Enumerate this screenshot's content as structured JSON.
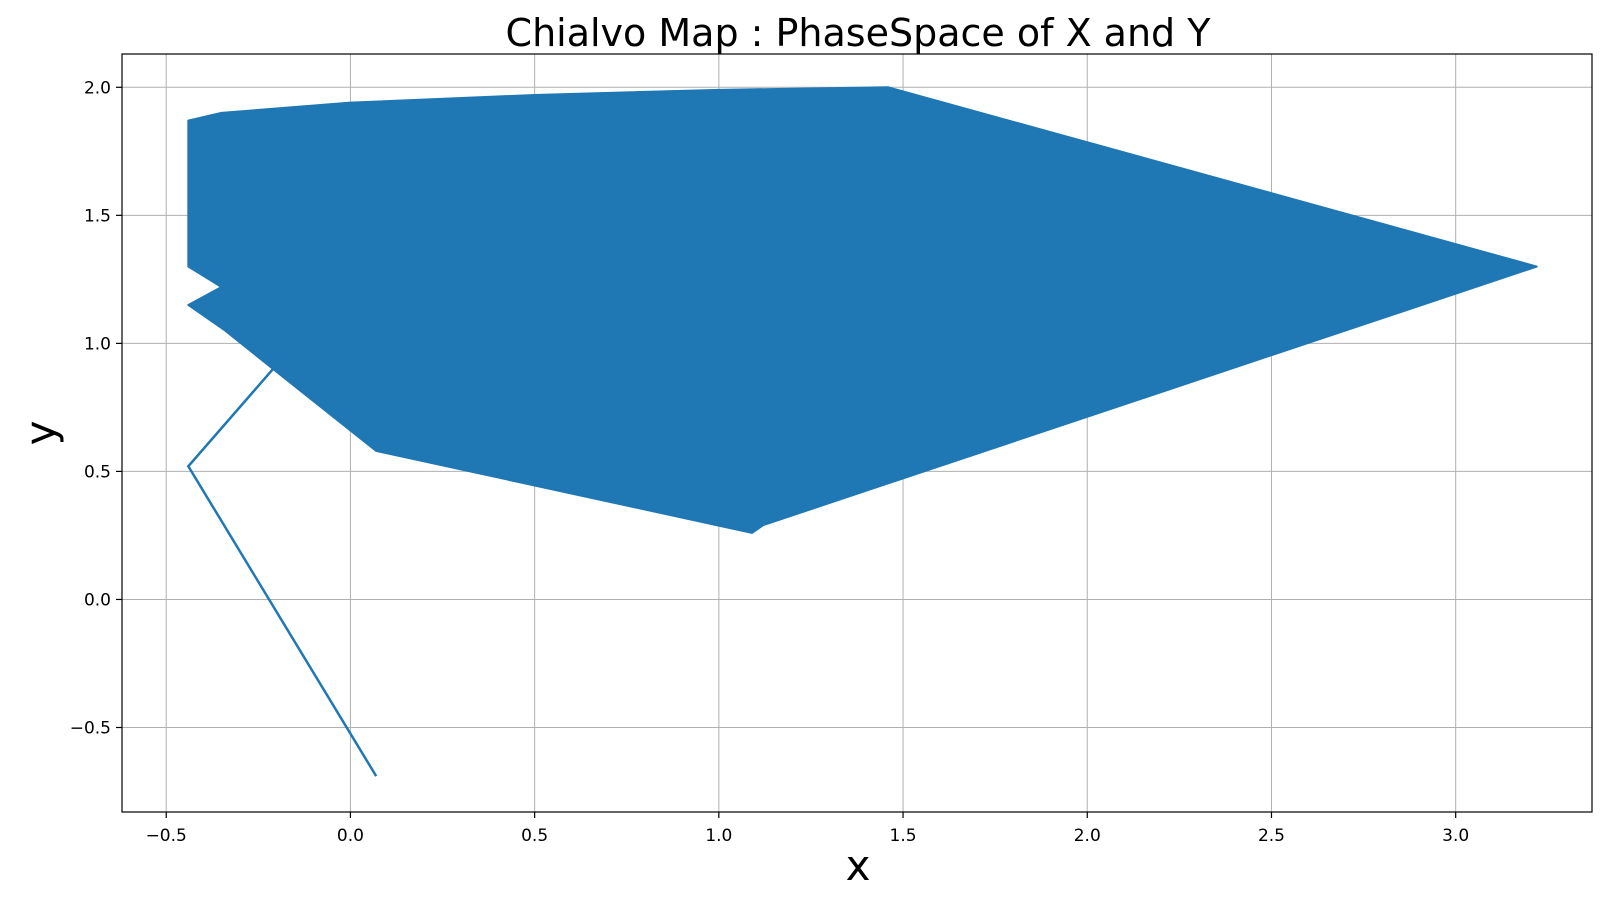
{
  "chart_data": {
    "type": "line",
    "title": "Chialvo Map : PhaseSpace of X and Y",
    "xlabel": "x",
    "ylabel": "y",
    "xlim": [
      -0.62,
      3.37
    ],
    "ylim": [
      -0.83,
      2.13
    ],
    "grid": true,
    "x_ticks": [
      -0.5,
      0.0,
      0.5,
      1.0,
      1.5,
      2.0,
      2.5,
      3.0
    ],
    "x_tick_labels": [
      "−0.5",
      "0.0",
      "0.5",
      "1.0",
      "1.5",
      "2.0",
      "2.5",
      "3.0"
    ],
    "y_ticks": [
      -0.5,
      0.0,
      0.5,
      1.0,
      1.5,
      2.0
    ],
    "y_tick_labels": [
      "−0.5",
      "0.0",
      "0.5",
      "1.0",
      "1.5",
      "2.0"
    ],
    "colors": {
      "series": "#1f77b4",
      "grid": "#b0b0b0"
    },
    "series": [
      {
        "transient": [
          [
            0.07,
            -0.69
          ],
          [
            -0.44,
            0.52
          ],
          [
            -0.21,
            0.9
          ]
        ],
        "attractor_outline": [
          [
            -0.44,
            1.15
          ],
          [
            -0.35,
            1.22
          ],
          [
            -0.44,
            1.3
          ],
          [
            -0.44,
            1.87
          ],
          [
            -0.35,
            1.9
          ],
          [
            0.0,
            1.94
          ],
          [
            0.5,
            1.97
          ],
          [
            1.0,
            1.99
          ],
          [
            1.46,
            2.0
          ],
          [
            3.22,
            1.3
          ],
          [
            1.12,
            0.29
          ],
          [
            1.09,
            0.26
          ],
          [
            0.07,
            0.58
          ],
          [
            -0.21,
            0.9
          ],
          [
            -0.34,
            1.05
          ],
          [
            -0.44,
            1.15
          ]
        ]
      }
    ]
  }
}
